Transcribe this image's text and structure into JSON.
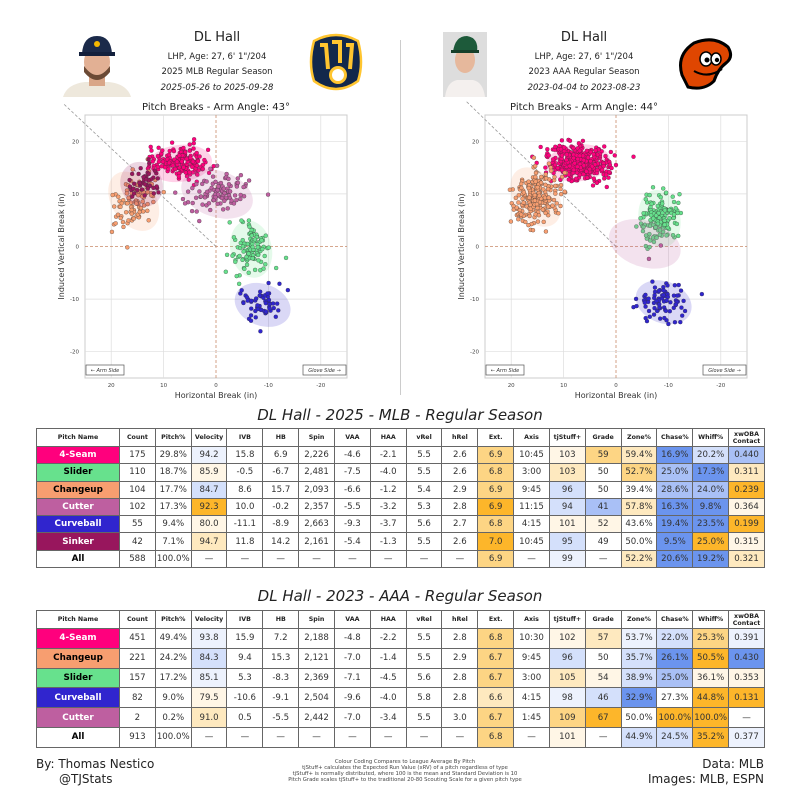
{
  "colors": {
    "b0": "#edf2fd",
    "b1": "#d4e0fb",
    "b2": "#a9c0f6",
    "b3": "#6b94ee",
    "o0": "#fff6e6",
    "o1": "#fee9bf",
    "o2": "#fdd584",
    "o3": "#fdb62a",
    "grid": "#dddddd",
    "axis_zero": "#c98a6a"
  },
  "pitch_colors": {
    "4-Seam": {
      "bg": "#ff007d",
      "fg": "#ffffff"
    },
    "Slider": {
      "bg": "#67e18d",
      "fg": "#000000"
    },
    "Changeup": {
      "bg": "#f79e70",
      "fg": "#000000"
    },
    "Cutter": {
      "bg": "#be5fa0",
      "fg": "#ffffff"
    },
    "Curveball": {
      "bg": "#3025ce",
      "fg": "#ffffff"
    },
    "Sinker": {
      "bg": "#98165d",
      "fg": "#ffffff"
    },
    "All": {
      "bg": "#ffffff",
      "fg": "#000000"
    }
  },
  "panels": [
    {
      "name": "DL Hall",
      "bio": "LHP, Age: 27, 6' 1\"/204",
      "season": "2025 MLB Regular Season",
      "dates": "2025-05-26 to 2025-09-28",
      "team_logo": "brewers-logo",
      "logo_text": "Milwaukee Brewers"
    },
    {
      "name": "DL Hall",
      "bio": "LHP, Age: 27, 6' 1\"/204",
      "season": "2023 AAA Regular Season",
      "dates": "2023-04-04 to 2023-08-23",
      "team_logo": "orioles-logo",
      "logo_text": "Baltimore Orioles"
    }
  ],
  "chart_data": [
    {
      "type": "scatter",
      "title": "Pitch Breaks - Arm Angle: 43°",
      "arm_angle": 43,
      "xlabel": "Horizontal Break (in)",
      "ylabel": "Induced Vertical Break (in)",
      "xlim": [
        25,
        -25
      ],
      "ylim": [
        -25,
        25
      ],
      "xticks": [
        "20",
        "10",
        "0",
        "-10",
        "-20"
      ],
      "yticks": [
        "20",
        "10",
        "0",
        "-10",
        "-20"
      ],
      "grid": true,
      "arm_side_label": "← Arm Side",
      "glove_side_label": "Glove Side →",
      "series": [
        {
          "name": "4-Seam",
          "count": 175,
          "hb": 6.9,
          "ivb": 15.8
        },
        {
          "name": "Slider",
          "count": 110,
          "hb": -6.7,
          "ivb": -0.5
        },
        {
          "name": "Changeup",
          "count": 104,
          "hb": 15.7,
          "ivb": 8.6
        },
        {
          "name": "Cutter",
          "count": 102,
          "hb": -0.2,
          "ivb": 10.0
        },
        {
          "name": "Curveball",
          "count": 55,
          "hb": -8.9,
          "ivb": -11.1
        },
        {
          "name": "Sinker",
          "count": 42,
          "hb": 14.2,
          "ivb": 11.8
        }
      ]
    },
    {
      "type": "scatter",
      "title": "Pitch Breaks - Arm Angle: 44°",
      "arm_angle": 44,
      "xlabel": "Horizontal Break (in)",
      "ylabel": "Induced Vertical Break (in)",
      "xlim": [
        25,
        -25
      ],
      "ylim": [
        -25,
        25
      ],
      "xticks": [
        "20",
        "10",
        "0",
        "-10",
        "-20"
      ],
      "yticks": [
        "20",
        "10",
        "0",
        "-10",
        "-20"
      ],
      "grid": true,
      "arm_side_label": "← Arm Side",
      "glove_side_label": "Glove Side →",
      "series": [
        {
          "name": "4-Seam",
          "count": 451,
          "hb": 7.2,
          "ivb": 15.9
        },
        {
          "name": "Changeup",
          "count": 221,
          "hb": 15.3,
          "ivb": 9.4
        },
        {
          "name": "Slider",
          "count": 157,
          "hb": -8.3,
          "ivb": 5.3
        },
        {
          "name": "Curveball",
          "count": 82,
          "hb": -9.1,
          "ivb": -10.6
        },
        {
          "name": "Cutter",
          "count": 2,
          "hb": -5.5,
          "ivb": 0.5
        }
      ]
    }
  ],
  "tables": [
    {
      "title": "DL Hall - 2025 - MLB - Regular Season",
      "headers": [
        "Pitch Name",
        "Count",
        "Pitch%",
        "Velocity",
        "IVB",
        "HB",
        "Spin",
        "VAA",
        "HAA",
        "vRel",
        "hRel",
        "Ext.",
        "Axis",
        "tjStuff+",
        "Grade",
        "Zone%",
        "Chase%",
        "Whiff%",
        "xwOBA Contact"
      ],
      "rows": [
        {
          "cells": [
            "4-Seam",
            "175",
            "29.8%",
            "94.2",
            "15.8",
            "6.9",
            "2,226",
            "-4.6",
            "-2.1",
            "5.5",
            "2.6",
            "6.9",
            "10:45",
            "103",
            "59",
            "59.4%",
            "16.9%",
            "20.2%",
            "0.440"
          ],
          "shade": {
            "3": "b0",
            "11": "o2",
            "13": "o0",
            "14": "o2",
            "15": "o1",
            "16": "b3",
            "17": "b1",
            "18": "b2"
          }
        },
        {
          "cells": [
            "Slider",
            "110",
            "18.7%",
            "85.9",
            "-0.5",
            "-6.7",
            "2,481",
            "-7.5",
            "-4.0",
            "5.5",
            "2.6",
            "6.8",
            "3:00",
            "103",
            "50",
            "52.7%",
            "25.0%",
            "17.3%",
            "0.311"
          ],
          "shade": {
            "3": "o0",
            "11": "o2",
            "13": "o1",
            "15": "o2",
            "16": "b2",
            "17": "b3",
            "18": "o1"
          }
        },
        {
          "cells": [
            "Changeup",
            "104",
            "17.7%",
            "84.7",
            "8.6",
            "15.7",
            "2,093",
            "-6.6",
            "-1.2",
            "5.4",
            "2.9",
            "6.9",
            "9:45",
            "96",
            "50",
            "39.4%",
            "28.6%",
            "24.0%",
            "0.239"
          ],
          "shade": {
            "3": "b1",
            "11": "o2",
            "13": "b1",
            "16": "b2",
            "17": "b2",
            "18": "o3"
          }
        },
        {
          "cells": [
            "Cutter",
            "102",
            "17.3%",
            "92.3",
            "10.0",
            "-0.2",
            "2,357",
            "-5.5",
            "-3.2",
            "5.3",
            "2.8",
            "6.9",
            "11:15",
            "94",
            "41",
            "57.8%",
            "16.3%",
            "9.8%",
            "0.364"
          ],
          "shade": {
            "3": "o3",
            "11": "o3",
            "13": "b1",
            "14": "b2",
            "15": "o1",
            "16": "b3",
            "17": "b3",
            "18": "o0"
          }
        },
        {
          "cells": [
            "Curveball",
            "55",
            "9.4%",
            "80.0",
            "-11.1",
            "-8.9",
            "2,663",
            "-9.3",
            "-3.7",
            "5.6",
            "2.7",
            "6.8",
            "4:15",
            "101",
            "52",
            "43.6%",
            "19.4%",
            "23.5%",
            "0.199"
          ],
          "shade": {
            "3": "o0",
            "11": "o2",
            "13": "o0",
            "14": "o0",
            "16": "b3",
            "17": "b3",
            "18": "o3"
          }
        },
        {
          "cells": [
            "Sinker",
            "42",
            "7.1%",
            "94.7",
            "11.8",
            "14.2",
            "2,161",
            "-5.4",
            "-1.3",
            "5.5",
            "2.6",
            "7.0",
            "10:45",
            "95",
            "49",
            "50.0%",
            "9.5%",
            "25.0%",
            "0.315"
          ],
          "shade": {
            "3": "o1",
            "11": "o3",
            "13": "b1",
            "16": "b3",
            "17": "o3",
            "18": "o0"
          }
        },
        {
          "cells": [
            "All",
            "588",
            "100.0%",
            "—",
            "—",
            "—",
            "—",
            "—",
            "—",
            "—",
            "—",
            "6.9",
            "—",
            "99",
            "—",
            "52.2%",
            "20.6%",
            "19.2%",
            "0.321"
          ],
          "shade": {
            "11": "o2",
            "13": "b0",
            "15": "o1",
            "16": "b3",
            "17": "b3",
            "18": "o1"
          }
        }
      ]
    },
    {
      "title": "DL Hall - 2023 - AAA - Regular Season",
      "headers": [
        "Pitch Name",
        "Count",
        "Pitch%",
        "Velocity",
        "IVB",
        "HB",
        "Spin",
        "VAA",
        "HAA",
        "vRel",
        "hRel",
        "Ext.",
        "Axis",
        "tjStuff+",
        "Grade",
        "Zone%",
        "Chase%",
        "Whiff%",
        "xwOBA Contact"
      ],
      "rows": [
        {
          "cells": [
            "4-Seam",
            "451",
            "49.4%",
            "93.8",
            "15.9",
            "7.2",
            "2,188",
            "-4.8",
            "-2.2",
            "5.5",
            "2.8",
            "6.8",
            "10:30",
            "102",
            "57",
            "53.7%",
            "22.0%",
            "25.3%",
            "0.391"
          ],
          "shade": {
            "3": "b0",
            "11": "o2",
            "13": "o0",
            "14": "o1",
            "15": "b0",
            "16": "b1",
            "17": "o2",
            "18": "b0"
          }
        },
        {
          "cells": [
            "Changeup",
            "221",
            "24.2%",
            "84.3",
            "9.4",
            "15.3",
            "2,121",
            "-7.0",
            "-1.4",
            "5.5",
            "2.9",
            "6.7",
            "9:45",
            "96",
            "50",
            "35.7%",
            "26.1%",
            "50.5%",
            "0.430"
          ],
          "shade": {
            "3": "b1",
            "11": "o2",
            "13": "b1",
            "15": "b1",
            "16": "b3",
            "17": "o3",
            "18": "b3"
          }
        },
        {
          "cells": [
            "Slider",
            "157",
            "17.2%",
            "85.1",
            "5.3",
            "-8.3",
            "2,369",
            "-7.1",
            "-4.5",
            "5.6",
            "2.8",
            "6.7",
            "3:00",
            "105",
            "54",
            "38.9%",
            "25.0%",
            "36.1%",
            "0.353"
          ],
          "shade": {
            "3": "b0",
            "11": "o2",
            "13": "o1",
            "14": "o0",
            "15": "b1",
            "16": "b2",
            "17": "o0",
            "18": "o0"
          }
        },
        {
          "cells": [
            "Curveball",
            "82",
            "9.0%",
            "79.5",
            "-10.6",
            "-9.1",
            "2,504",
            "-9.6",
            "-4.0",
            "5.8",
            "2.8",
            "6.6",
            "4:15",
            "98",
            "46",
            "32.9%",
            "27.3%",
            "44.8%",
            "0.131"
          ],
          "shade": {
            "3": "o0",
            "11": "o1",
            "13": "b0",
            "14": "b1",
            "15": "b3",
            "17": "o3",
            "18": "o3"
          }
        },
        {
          "cells": [
            "Cutter",
            "2",
            "0.2%",
            "91.0",
            "0.5",
            "-5.5",
            "2,442",
            "-7.0",
            "-3.4",
            "5.5",
            "3.0",
            "6.7",
            "1:45",
            "109",
            "67",
            "50.0%",
            "100.0%",
            "100.0%",
            "—"
          ],
          "shade": {
            "3": "o1",
            "11": "o2",
            "13": "o2",
            "14": "o3",
            "16": "o3",
            "17": "o3"
          }
        },
        {
          "cells": [
            "All",
            "913",
            "100.0%",
            "—",
            "—",
            "—",
            "—",
            "—",
            "—",
            "—",
            "—",
            "6.8",
            "—",
            "101",
            "—",
            "44.9%",
            "24.5%",
            "35.2%",
            "0.377"
          ],
          "shade": {
            "11": "o2",
            "13": "o0",
            "15": "b1",
            "16": "b1",
            "17": "o3",
            "18": "b0"
          }
        }
      ]
    }
  ],
  "footer": {
    "author": "By: Thomas Nestico",
    "handle": "@TJStats",
    "notes": [
      "Colour Coding Compares to League Average By Pitch",
      "tjStuff+ calculates the Expected Run Value (xRV) of a pitch regardless of type",
      "tjStuff+ is normally distributed, where 100 is the mean and Standard Deviation is 10",
      "Pitch Grade scales tjStuff+ to the traditional 20-80 Scouting Scale for a given pitch type"
    ],
    "data_source": "Data: MLB",
    "images_source": "Images: MLB, ESPN"
  }
}
